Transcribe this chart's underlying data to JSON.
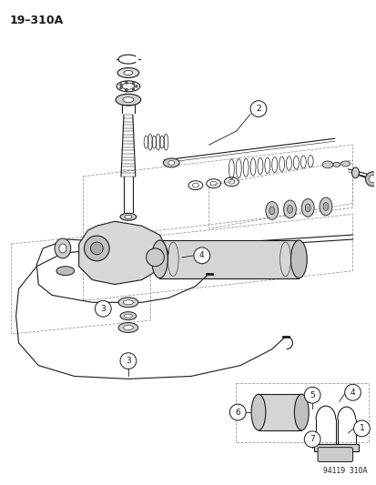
{
  "title": "19–310A",
  "footer": "94119  310A",
  "bg_color": "#ffffff",
  "text_color": "#1a1a1a",
  "fig_width": 4.14,
  "fig_height": 5.33,
  "dpi": 100
}
